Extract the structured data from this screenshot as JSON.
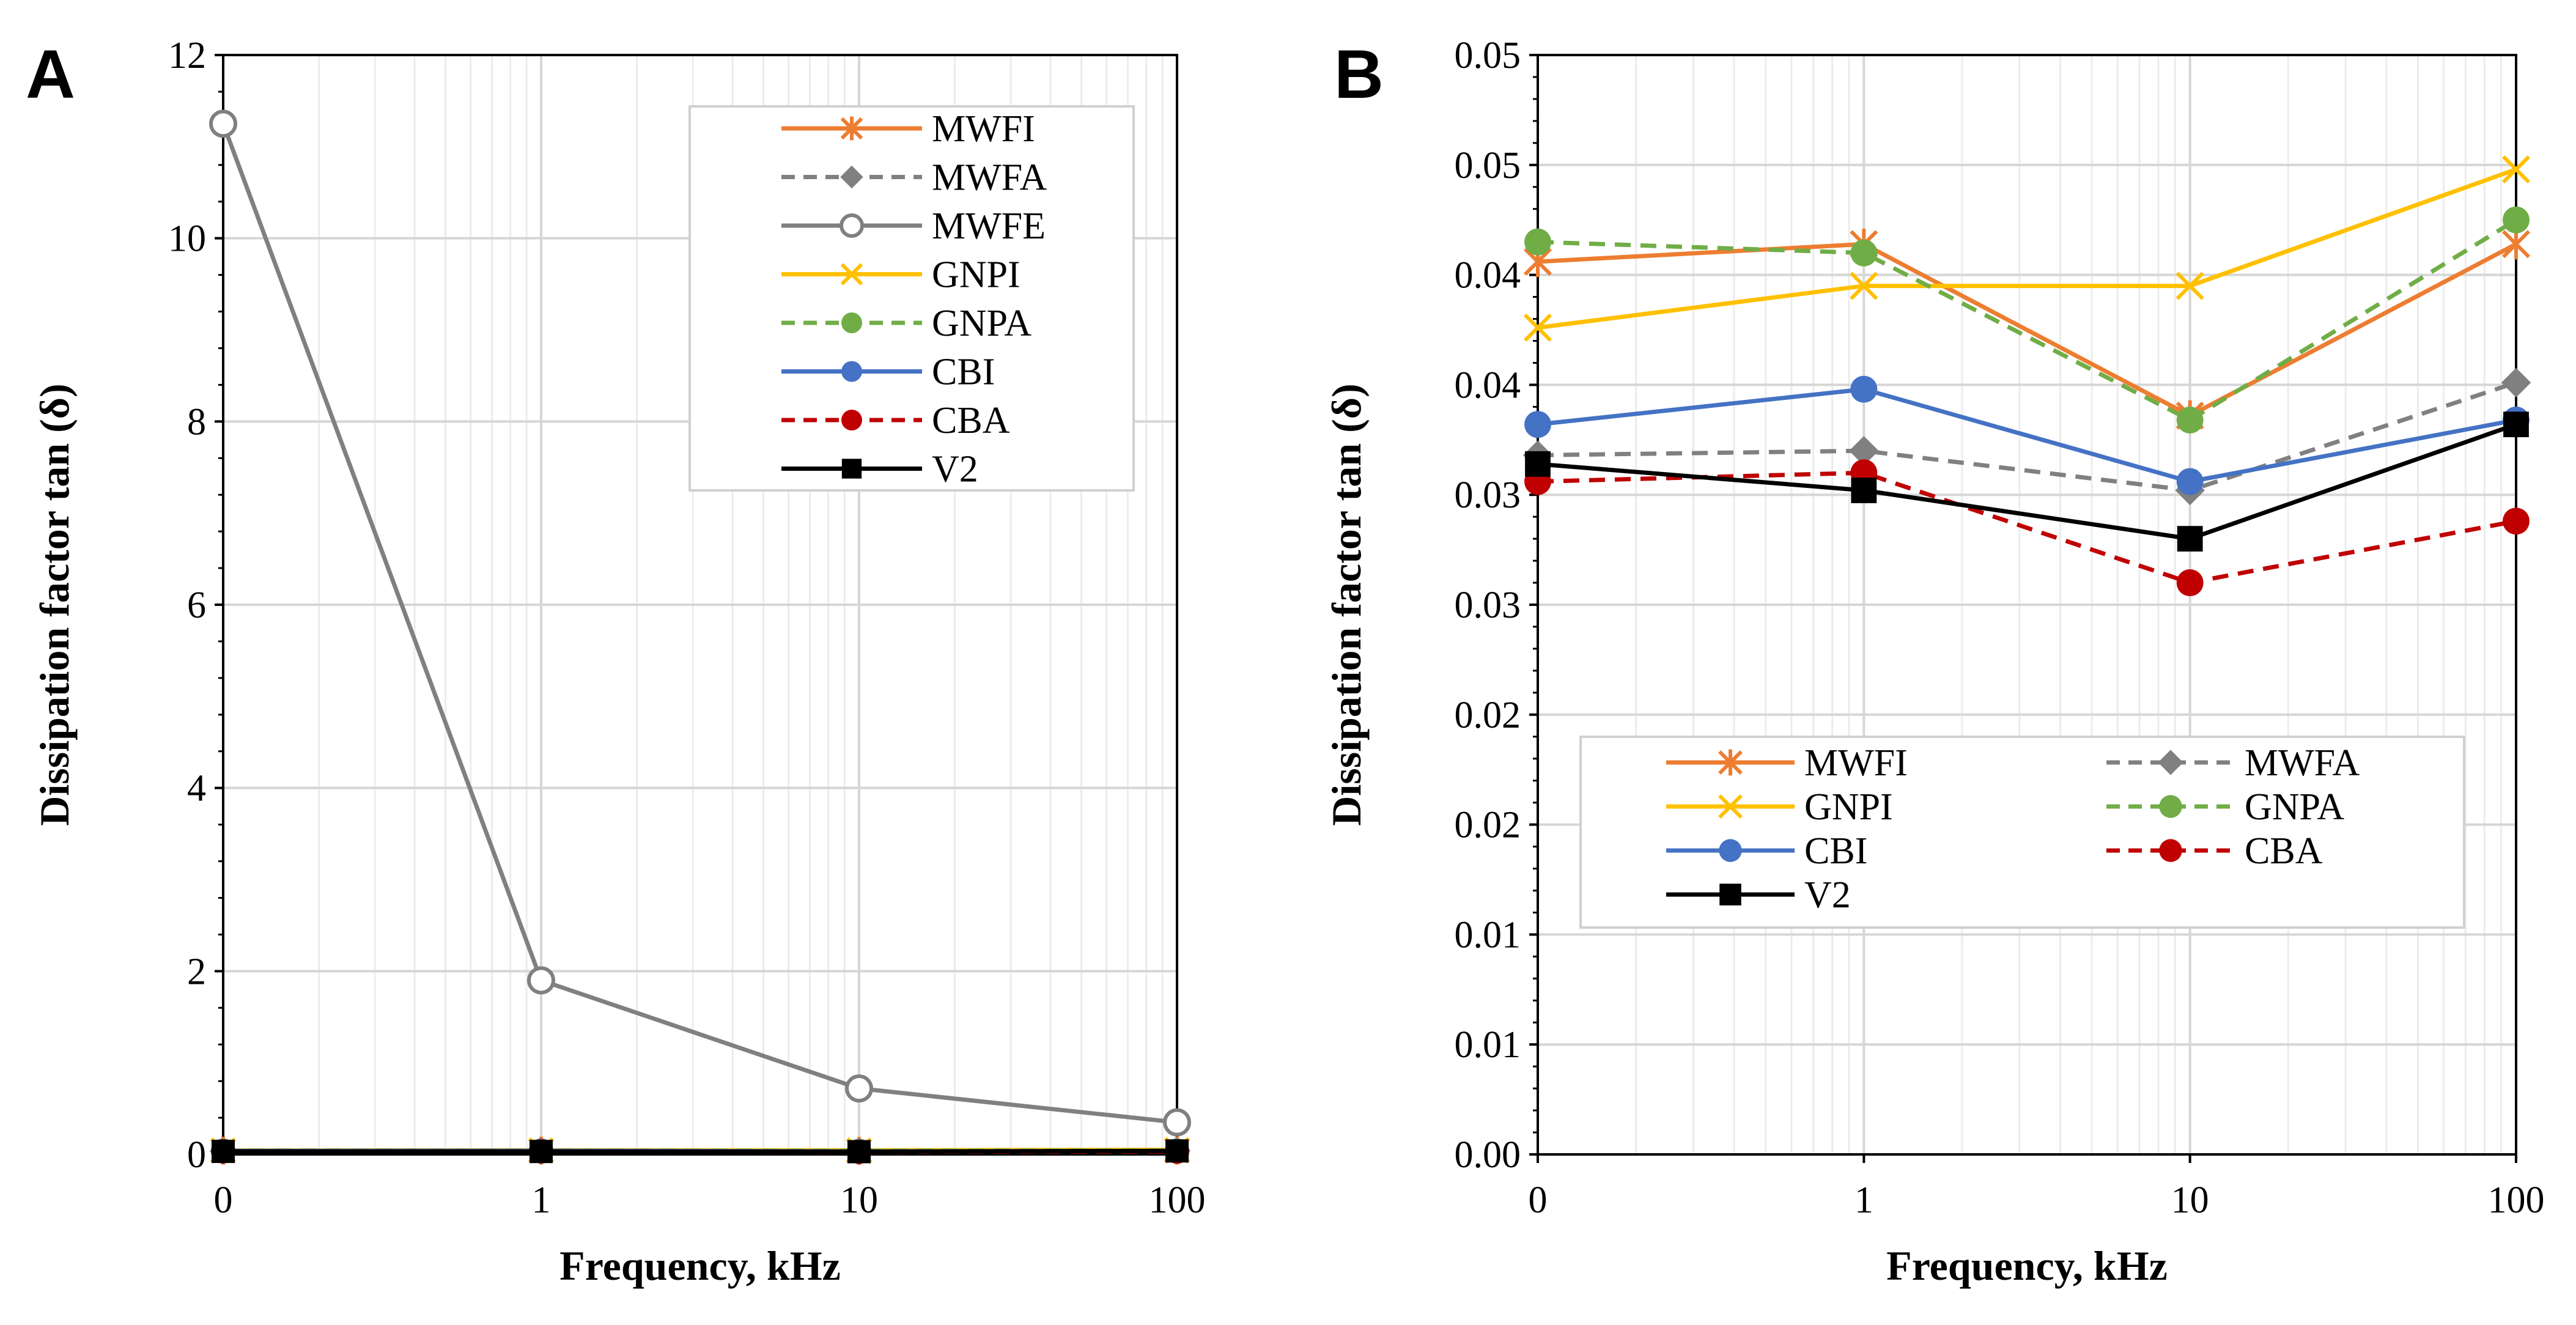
{
  "chart_data": [
    {
      "panel": "A",
      "type": "line",
      "xscale": "log",
      "categories": [
        "0",
        "1",
        "10",
        "100"
      ],
      "xlabel": "Frequency, kHz",
      "ylabel": "Dissipation factor tan (δ)",
      "ylim": [
        0,
        12
      ],
      "yticks": [
        "0",
        "2",
        "4",
        "6",
        "8",
        "10",
        "12"
      ],
      "grid": true,
      "legend_position": "top-right",
      "legend_columns": 1,
      "series": [
        {
          "name": "MWFI",
          "color": "#ed7d31",
          "dash": "solid",
          "marker": "star",
          "values": [
            0.041,
            0.042,
            0.039,
            0.042
          ]
        },
        {
          "name": "MWFA",
          "color": "#808080",
          "dash": "dashed",
          "marker": "diamond",
          "values": [
            0.034,
            0.035,
            0.033,
            0.04
          ]
        },
        {
          "name": "MWFE",
          "color": "#808080",
          "dash": "solid",
          "marker": "open-circle",
          "values": [
            11.25,
            1.9,
            0.72,
            0.35
          ]
        },
        {
          "name": "GNPI",
          "color": "#ffc000",
          "dash": "solid",
          "marker": "x",
          "values": [
            0.043,
            0.045,
            0.045,
            0.05
          ]
        },
        {
          "name": "GNPA",
          "color": "#70ad47",
          "dash": "dashed",
          "marker": "circle",
          "values": [
            0.041,
            0.041,
            0.038,
            0.042
          ]
        },
        {
          "name": "CBI",
          "color": "#4472c4",
          "dash": "solid",
          "marker": "circle",
          "values": [
            0.038,
            0.04,
            0.033,
            0.038
          ]
        },
        {
          "name": "CBA",
          "color": "#c00000",
          "dash": "dashed",
          "marker": "circle",
          "values": [
            0.033,
            0.033,
            0.028,
            0.031
          ]
        },
        {
          "name": "V2",
          "color": "#000000",
          "dash": "solid",
          "marker": "square",
          "values": [
            0.033,
            0.032,
            0.03,
            0.038
          ]
        }
      ]
    },
    {
      "panel": "B",
      "type": "line",
      "xscale": "log",
      "categories": [
        "0",
        "1",
        "10",
        "100"
      ],
      "xlabel": "Frequency, kHz",
      "ylabel": "Dissipation factor tan (δ)",
      "ylim": [
        0,
        0.05
      ],
      "yticks": [
        "0.00",
        "0.01",
        "0.01",
        "0.02",
        "0.02",
        "0.03",
        "0.03",
        "0.04",
        "0.04",
        "0.05",
        "0.05"
      ],
      "grid": true,
      "legend_position": "lower-center",
      "legend_columns": 2,
      "series": [
        {
          "name": "MWFI",
          "color": "#ed7d31",
          "dash": "solid",
          "marker": "star",
          "values": [
            0.0406,
            0.0414,
            0.0336,
            0.0414
          ]
        },
        {
          "name": "MWFA",
          "color": "#808080",
          "dash": "dashed",
          "marker": "diamond",
          "values": [
            0.0318,
            0.032,
            0.0302,
            0.0351
          ]
        },
        {
          "name": "GNPI",
          "color": "#ffc000",
          "dash": "solid",
          "marker": "x",
          "values": [
            0.0376,
            0.0395,
            0.0395,
            0.0448
          ]
        },
        {
          "name": "GNPA",
          "color": "#70ad47",
          "dash": "dashed",
          "marker": "circle",
          "values": [
            0.0415,
            0.041,
            0.0334,
            0.0425
          ]
        },
        {
          "name": "CBI",
          "color": "#4472c4",
          "dash": "solid",
          "marker": "circle",
          "values": [
            0.0332,
            0.0348,
            0.0306,
            0.0334
          ]
        },
        {
          "name": "CBA",
          "color": "#c00000",
          "dash": "dashed",
          "marker": "circle",
          "values": [
            0.0306,
            0.031,
            0.026,
            0.0288
          ]
        },
        {
          "name": "V2",
          "color": "#000000",
          "dash": "solid",
          "marker": "square",
          "values": [
            0.0314,
            0.0302,
            0.028,
            0.0332
          ]
        }
      ]
    }
  ]
}
